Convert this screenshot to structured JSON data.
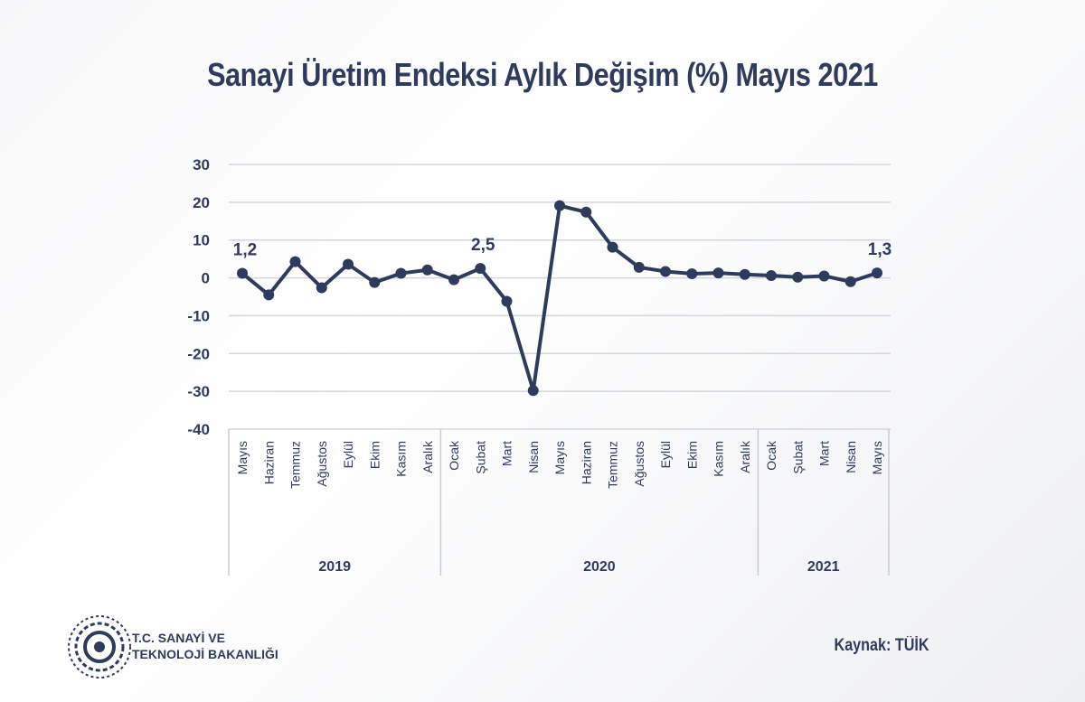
{
  "chart_data": {
    "type": "line",
    "title": "Sanayi Üretim Endeksi Aylık Değişim (%) Mayıs 2021",
    "categories": [
      "Mayıs",
      "Haziran",
      "Temmuz",
      "Ağustos",
      "Eylül",
      "Ekim",
      "Kasım",
      "Aralık",
      "Ocak",
      "Şubat",
      "Mart",
      "Nisan",
      "Mayıs",
      "Haziran",
      "Temmuz",
      "Ağustos",
      "Eylül",
      "Ekim",
      "Kasım",
      "Aralık",
      "Ocak",
      "Şubat",
      "Mart",
      "Nisan",
      "Mayıs"
    ],
    "years": [
      {
        "label": "2019",
        "count": 8
      },
      {
        "label": "2020",
        "count": 12
      },
      {
        "label": "2021",
        "count": 5
      }
    ],
    "values": [
      1.2,
      -4.5,
      4.3,
      -2.6,
      3.6,
      -1.2,
      1.2,
      2.1,
      -0.5,
      2.5,
      -6.2,
      -29.8,
      19.1,
      17.4,
      8.1,
      2.8,
      1.7,
      1.1,
      1.3,
      0.9,
      0.6,
      0.2,
      0.5,
      -1.0,
      1.3
    ],
    "data_labels": [
      {
        "index": 0,
        "text": "1,2"
      },
      {
        "index": 9,
        "text": "2,5"
      },
      {
        "index": 24,
        "text": "1,3"
      }
    ],
    "yticks": [
      "30",
      "20",
      "10",
      "0",
      "-10",
      "-20",
      "-30",
      "-40"
    ],
    "ylim": [
      -40,
      30
    ],
    "grid": true,
    "line_color": "#2f3b5c"
  },
  "footer": {
    "org_line1": "T.C. SANAYİ VE",
    "org_line2": "TEKNOLOJİ BAKANLIĞI",
    "source": "Kaynak: TÜİK"
  }
}
